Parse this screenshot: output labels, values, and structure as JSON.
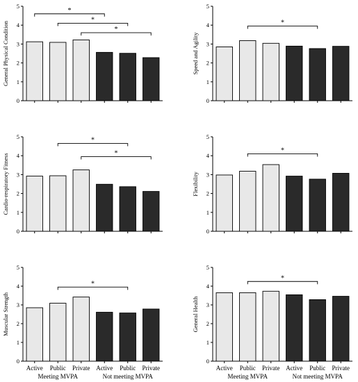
{
  "group_labels": [
    "Meeting MVPA",
    "Not meeting MVPA"
  ],
  "colors": {
    "meeting": "#e8e8e8",
    "not_meeting": "#2a2a2a",
    "axis": "#000000"
  },
  "chart_data": [
    {
      "type": "bar",
      "ylabel": "General Physical Condition",
      "categories": [
        "Active",
        "Public",
        "Private",
        "Active",
        "Public",
        "Private"
      ],
      "values": [
        3.12,
        3.09,
        3.22,
        2.56,
        2.51,
        2.28
      ],
      "ylim": [
        0,
        5
      ],
      "yticks": [
        "0",
        "1",
        "2",
        "3",
        "4",
        "5"
      ],
      "show_xticks": false,
      "significance": [
        {
          "from": 0,
          "to": 3,
          "level": 4.6,
          "mark": "*"
        },
        {
          "from": 1,
          "to": 4,
          "level": 4.1,
          "mark": "*"
        },
        {
          "from": 2,
          "to": 5,
          "level": 3.6,
          "mark": "*"
        }
      ]
    },
    {
      "type": "bar",
      "ylabel": "Speed and Agility",
      "categories": [
        "Active",
        "Public",
        "Private",
        "Active",
        "Public",
        "Private"
      ],
      "values": [
        2.85,
        3.18,
        3.04,
        2.89,
        2.76,
        2.88
      ],
      "ylim": [
        0,
        5
      ],
      "yticks": [
        "0",
        "1",
        "2",
        "3",
        "4",
        "5"
      ],
      "show_xticks": false,
      "significance": [
        {
          "from": 1,
          "to": 4,
          "level": 3.95,
          "mark": "*"
        }
      ]
    },
    {
      "type": "bar",
      "ylabel": "Cardio-respiratory Fitness",
      "categories": [
        "Active",
        "Public",
        "Private",
        "Active",
        "Public",
        "Private"
      ],
      "values": [
        2.92,
        2.94,
        3.25,
        2.49,
        2.36,
        2.11
      ],
      "ylim": [
        0,
        5
      ],
      "yticks": [
        "0",
        "1",
        "2",
        "3",
        "4",
        "5"
      ],
      "show_xticks": false,
      "significance": [
        {
          "from": 1,
          "to": 4,
          "level": 4.65,
          "mark": "*"
        },
        {
          "from": 2,
          "to": 5,
          "level": 3.95,
          "mark": "*"
        }
      ]
    },
    {
      "type": "bar",
      "ylabel": "Flexibility",
      "categories": [
        "Active",
        "Public",
        "Private",
        "Active",
        "Public",
        "Private"
      ],
      "values": [
        2.98,
        3.18,
        3.53,
        2.92,
        2.76,
        3.07
      ],
      "ylim": [
        0,
        5
      ],
      "yticks": [
        "0",
        "1",
        "2",
        "3",
        "4",
        "5"
      ],
      "show_xticks": false,
      "significance": [
        {
          "from": 1,
          "to": 4,
          "level": 4.1,
          "mark": "*"
        }
      ]
    },
    {
      "type": "bar",
      "ylabel": "Muscular Strength",
      "categories": [
        "Active",
        "Public",
        "Private",
        "Active",
        "Public",
        "Private"
      ],
      "values": [
        2.85,
        3.09,
        3.42,
        2.61,
        2.57,
        2.78
      ],
      "ylim": [
        0,
        5
      ],
      "yticks": [
        "0",
        "1",
        "2",
        "3",
        "4",
        "5"
      ],
      "show_xticks": true,
      "significance": [
        {
          "from": 1,
          "to": 4,
          "level": 3.95,
          "mark": "*"
        }
      ]
    },
    {
      "type": "bar",
      "ylabel": "General Health",
      "categories": [
        "Active",
        "Public",
        "Private",
        "Active",
        "Public",
        "Private"
      ],
      "values": [
        3.65,
        3.65,
        3.73,
        3.54,
        3.28,
        3.46
      ],
      "ylim": [
        0,
        5
      ],
      "yticks": [
        "0",
        "1",
        "2",
        "3",
        "4",
        "5"
      ],
      "show_xticks": true,
      "significance": [
        {
          "from": 1,
          "to": 4,
          "level": 4.25,
          "mark": "*"
        }
      ]
    }
  ]
}
